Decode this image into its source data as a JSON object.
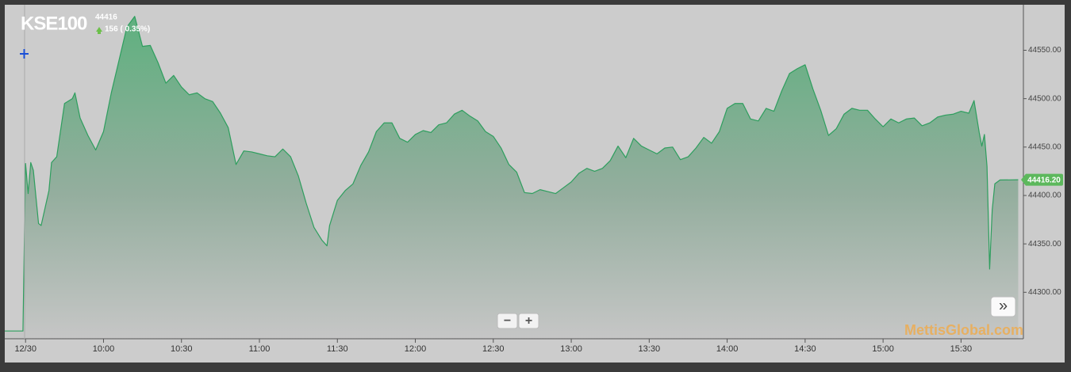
{
  "chart_data": {
    "type": "area",
    "title": "KSE100",
    "last_price": 44416,
    "change_text": "156 ( 0.35%)",
    "color": "#2e9e5e",
    "x": [
      562,
      569,
      570,
      571,
      572,
      573,
      575,
      576,
      579,
      580,
      582,
      585,
      588,
      589,
      591,
      594,
      597,
      600,
      603,
      606,
      609,
      612,
      615,
      618,
      621,
      624,
      627,
      630,
      633,
      636,
      639,
      642,
      645,
      648,
      651,
      654,
      657,
      660,
      663,
      666,
      669,
      672,
      675,
      678,
      681,
      684,
      686,
      687,
      690,
      693,
      696,
      699,
      702,
      705,
      708,
      711,
      714,
      717,
      720,
      723,
      726,
      729,
      732,
      735,
      738,
      741,
      744,
      747,
      750,
      753,
      756,
      759,
      762,
      765,
      768,
      771,
      774,
      777,
      780,
      783,
      786,
      789,
      792,
      795,
      798,
      801,
      804,
      807,
      810,
      813,
      816,
      819,
      822,
      825,
      828,
      831,
      834,
      837,
      840,
      843,
      846,
      849,
      852,
      855,
      858,
      861,
      864,
      867,
      870,
      873,
      876,
      879,
      882,
      885,
      888,
      891,
      894,
      897,
      900,
      903,
      906,
      909,
      912,
      915,
      918,
      921,
      924,
      927,
      930,
      933,
      935,
      937,
      938,
      939,
      940,
      941,
      942,
      943,
      945,
      952
    ],
    "values": [
      44260,
      44260,
      44433,
      44402,
      44434,
      44426,
      44371,
      44369,
      44405,
      44434,
      44440,
      44495,
      44500,
      44506,
      44480,
      44462,
      44447,
      44466,
      44506,
      44540,
      44574,
      44585,
      44554,
      44555,
      44537,
      44516,
      44524,
      44512,
      44504,
      44506,
      44500,
      44497,
      44485,
      44470,
      44432,
      44446,
      44445,
      44443,
      44441,
      44440,
      44448,
      44440,
      44420,
      44392,
      44367,
      44354,
      44348,
      44369,
      44395,
      44405,
      44412,
      44431,
      44445,
      44466,
      44475,
      44475,
      44459,
      44455,
      44463,
      44467,
      44465,
      44473,
      44475,
      44484,
      44488,
      44482,
      44477,
      44466,
      44461,
      44449,
      44432,
      44424,
      44403,
      44402,
      44406,
      44404,
      44402,
      44408,
      44414,
      44423,
      44428,
      44425,
      44428,
      44436,
      44451,
      44439,
      44459,
      44451,
      44447,
      44443,
      44449,
      44450,
      44437,
      44440,
      44449,
      44460,
      44454,
      44466,
      44490,
      44495,
      44495,
      44479,
      44477,
      44490,
      44487,
      44508,
      44526,
      44531,
      44535,
      44510,
      44488,
      44462,
      44469,
      44484,
      44490,
      44488,
      44488,
      44479,
      44471,
      44479,
      44475,
      44479,
      44480,
      44472,
      44475,
      44481,
      44483,
      44484,
      44487,
      44485,
      44498,
      44465,
      44451,
      44463,
      44430,
      44324,
      44385,
      44412,
      44416,
      44416.2
    ],
    "xlim": [
      562,
      954
    ],
    "xticks": [
      {
        "value": 570,
        "label": "12/30"
      },
      {
        "value": 600,
        "label": "10:00"
      },
      {
        "value": 630,
        "label": "10:30"
      },
      {
        "value": 660,
        "label": "11:00"
      },
      {
        "value": 690,
        "label": "11:30"
      },
      {
        "value": 720,
        "label": "12:00"
      },
      {
        "value": 750,
        "label": "12:30"
      },
      {
        "value": 780,
        "label": "13:00"
      },
      {
        "value": 810,
        "label": "13:30"
      },
      {
        "value": 840,
        "label": "14:00"
      },
      {
        "value": 870,
        "label": "14:30"
      },
      {
        "value": 900,
        "label": "15:00"
      },
      {
        "value": 930,
        "label": "15:30"
      }
    ],
    "ylim": [
      44252,
      44597
    ],
    "yticks": [
      {
        "value": 44300,
        "label": "44300.00"
      },
      {
        "value": 44350,
        "label": "44350.00"
      },
      {
        "value": 44400,
        "label": "44400.00"
      },
      {
        "value": 44450,
        "label": "44450.00"
      },
      {
        "value": 44500,
        "label": "44500.00"
      },
      {
        "value": 44550,
        "label": "44550.00"
      }
    ],
    "last_value": {
      "value": 44416.2,
      "label": "44416.20"
    },
    "grid": false,
    "watermark": "MettisGlobal.com"
  },
  "controls": {
    "zoom_out": "−",
    "zoom_in": "+",
    "scroll": "»"
  }
}
